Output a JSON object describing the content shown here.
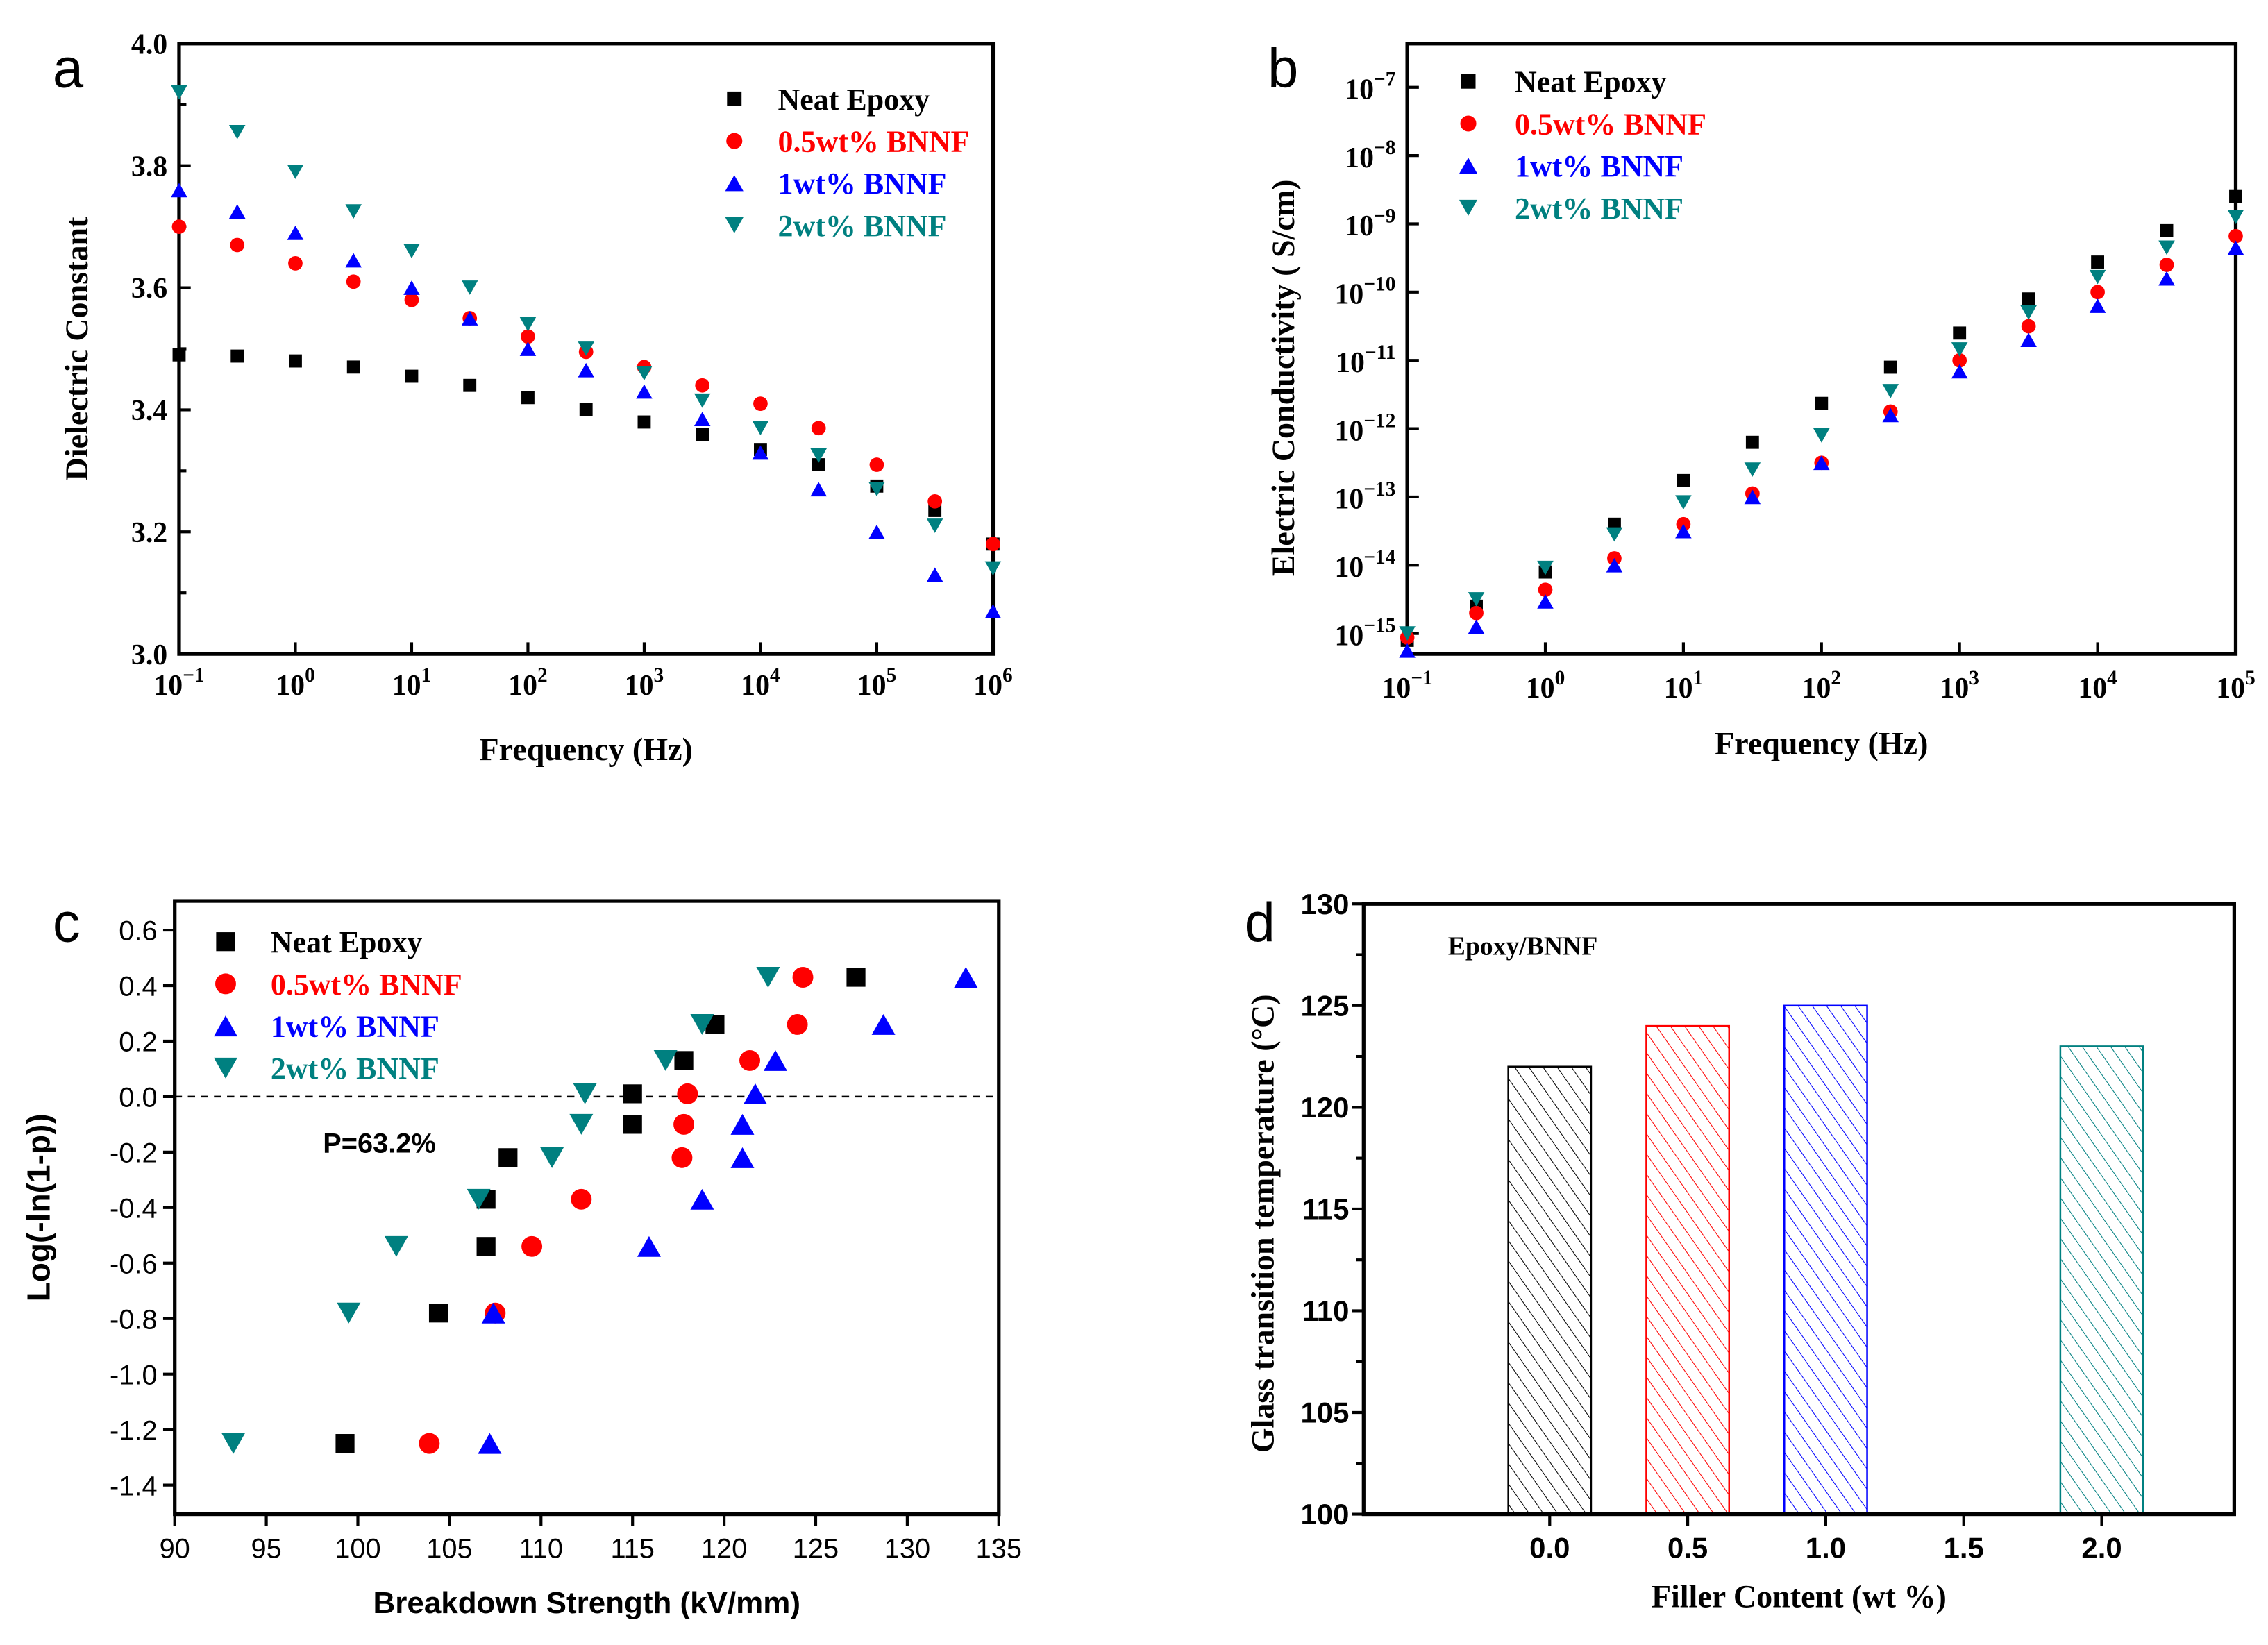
{
  "colors": {
    "neat": "#000000",
    "w05": "#ff0000",
    "w1": "#0000ff",
    "w2": "#008080"
  },
  "chart_data": [
    {
      "panel": "a",
      "type": "scatter",
      "xscale": "log",
      "xlabel": "Frequency (Hz)",
      "ylabel": "Dielectric Constant",
      "xlim_exp": [
        -1,
        6
      ],
      "ylim": [
        3.0,
        4.0
      ],
      "xtick_exponents": [
        -1,
        0,
        1,
        2,
        3,
        4,
        5,
        6
      ],
      "yticks": [
        "3.0",
        "3.2",
        "3.4",
        "3.6",
        "3.8",
        "4.0"
      ],
      "x_exp": [
        -1,
        -0.5,
        0,
        0.5,
        1,
        1.5,
        2,
        2.5,
        3,
        3.5,
        4,
        4.5,
        5,
        5.5,
        6
      ],
      "series": [
        {
          "name": "Neat Epoxy",
          "marker": "square",
          "color_key": "neat",
          "values": [
            3.49,
            3.488,
            3.48,
            3.47,
            3.455,
            3.44,
            3.42,
            3.4,
            3.38,
            3.36,
            3.335,
            3.31,
            3.275,
            3.235,
            3.18
          ]
        },
        {
          "name": "0.5wt% BNNF",
          "marker": "circle",
          "color_key": "w05",
          "values": [
            3.7,
            3.67,
            3.64,
            3.61,
            3.58,
            3.55,
            3.52,
            3.495,
            3.47,
            3.44,
            3.41,
            3.37,
            3.31,
            3.25,
            3.18
          ]
        },
        {
          "name": "1wt% BNNF",
          "marker": "triangle-up",
          "color_key": "w1",
          "values": [
            3.76,
            3.725,
            3.69,
            3.645,
            3.6,
            3.55,
            3.5,
            3.465,
            3.43,
            3.385,
            3.33,
            3.27,
            3.2,
            3.13,
            3.07
          ]
        },
        {
          "name": "2wt% BNNF",
          "marker": "triangle-down",
          "color_key": "w2",
          "values": [
            3.92,
            3.855,
            3.79,
            3.725,
            3.66,
            3.6,
            3.54,
            3.5,
            3.46,
            3.415,
            3.37,
            3.325,
            3.27,
            3.21,
            3.14
          ]
        }
      ],
      "legend": "top-right"
    },
    {
      "panel": "b",
      "type": "scatter",
      "xscale": "log",
      "yscale": "log",
      "xlabel": "Frequency (Hz)",
      "ylabel": "Electric Conductivity (  S/cm)",
      "xlim_exp": [
        -1,
        5
      ],
      "ylim_exp": [
        -15.3,
        -6.36
      ],
      "xtick_exponents": [
        -1,
        0,
        1,
        2,
        3,
        4,
        5
      ],
      "ytick_exponents": [
        -15,
        -14,
        -13,
        -12,
        -11,
        -10,
        -9,
        -8,
        -7
      ],
      "x_exp": [
        -1,
        -0.5,
        0,
        0.5,
        1,
        1.5,
        2,
        2.5,
        3,
        3.5,
        4,
        4.5,
        5
      ],
      "series_note": "values are log10 of conductivity (S/cm)",
      "series": [
        {
          "name": "Neat Epoxy",
          "marker": "square",
          "color_key": "neat",
          "values": [
            -15.1,
            -14.6,
            -14.1,
            -13.4,
            -12.76,
            -12.2,
            -11.63,
            -11.1,
            -10.6,
            -10.1,
            -9.56,
            -9.1,
            -8.6
          ]
        },
        {
          "name": "0.5wt% BNNF",
          "marker": "circle",
          "color_key": "w05",
          "values": [
            -15.06,
            -14.7,
            -14.36,
            -13.9,
            -13.4,
            -12.95,
            -12.5,
            -11.75,
            -11.0,
            -10.5,
            -10.0,
            -9.6,
            -9.18
          ]
        },
        {
          "name": "1wt% BNNF",
          "marker": "triangle-up",
          "color_key": "w1",
          "values": [
            -15.25,
            -14.9,
            -14.53,
            -14.0,
            -13.5,
            -13.0,
            -12.5,
            -11.8,
            -11.16,
            -10.7,
            -10.2,
            -9.8,
            -9.35
          ]
        },
        {
          "name": "2wt% BNNF",
          "marker": "triangle-down",
          "color_key": "w2",
          "values": [
            -15.0,
            -14.5,
            -14.04,
            -13.55,
            -13.08,
            -12.6,
            -12.1,
            -11.45,
            -10.84,
            -10.3,
            -9.78,
            -9.35,
            -8.9
          ]
        }
      ],
      "legend": "top-left"
    },
    {
      "panel": "c",
      "type": "scatter",
      "xlabel": "Breakdown Strength (kV/mm)",
      "ylabel": "Log(-ln(1-p))",
      "xlim": [
        90,
        135
      ],
      "ylim": [
        -1.505,
        0.705
      ],
      "xticks": [
        "90",
        "95",
        "100",
        "105",
        "110",
        "115",
        "120",
        "125",
        "130",
        "135"
      ],
      "yticks": [
        "-1.4",
        "-1.2",
        "-1.0",
        "-0.8",
        "-0.6",
        "-0.4",
        "-0.2",
        "0.0",
        "0.2",
        "0.4",
        "0.6"
      ],
      "annotation": "P=63.2%",
      "reference_line_y": 0,
      "series": [
        {
          "name": "Neat Epoxy",
          "marker": "square",
          "color_key": "neat",
          "points": [
            [
              99.3,
              -1.25
            ],
            [
              104.4,
              -0.78
            ],
            [
              107,
              -0.54
            ],
            [
              107,
              -0.37
            ],
            [
              108.2,
              -0.22
            ],
            [
              115,
              -0.1
            ],
            [
              115,
              0.01
            ],
            [
              117.8,
              0.13
            ],
            [
              119.5,
              0.26
            ],
            [
              127.2,
              0.43
            ]
          ]
        },
        {
          "name": "0.5wt% BNNF",
          "marker": "circle",
          "color_key": "w05",
          "points": [
            [
              103.9,
              -1.25
            ],
            [
              107.5,
              -0.78
            ],
            [
              109.5,
              -0.54
            ],
            [
              112.2,
              -0.37
            ],
            [
              117.7,
              -0.22
            ],
            [
              117.8,
              -0.1
            ],
            [
              118,
              0.01
            ],
            [
              121.4,
              0.13
            ],
            [
              124,
              0.26
            ],
            [
              124.3,
              0.43
            ]
          ]
        },
        {
          "name": "1wt% BNNF",
          "marker": "triangle-up",
          "color_key": "w1",
          "points": [
            [
              107.2,
              -1.25
            ],
            [
              107.4,
              -0.78
            ],
            [
              115.9,
              -0.54
            ],
            [
              118.8,
              -0.37
            ],
            [
              121,
              -0.22
            ],
            [
              121,
              -0.1
            ],
            [
              121.7,
              0.01
            ],
            [
              122.8,
              0.13
            ],
            [
              128.7,
              0.26
            ],
            [
              133.2,
              0.43
            ]
          ]
        },
        {
          "name": "2wt% BNNF",
          "marker": "triangle-down",
          "color_key": "w2",
          "points": [
            [
              93.2,
              -1.25
            ],
            [
              99.5,
              -0.78
            ],
            [
              102.1,
              -0.54
            ],
            [
              106.6,
              -0.37
            ],
            [
              110.6,
              -0.22
            ],
            [
              112.2,
              -0.1
            ],
            [
              112.4,
              0.01
            ],
            [
              116.8,
              0.13
            ],
            [
              118.8,
              0.26
            ],
            [
              122.4,
              0.43
            ]
          ]
        }
      ],
      "legend": "top-left"
    },
    {
      "panel": "d",
      "type": "bar",
      "title": "Epoxy/BNNF",
      "xlabel": "Filler Content (wt %)",
      "ylabel": "Glass transition temperature (°C)",
      "ylim": [
        100,
        130
      ],
      "xlim": [
        -0.674,
        2.48
      ],
      "xticks": [
        "0.0",
        "0.5",
        "1.0",
        "1.5",
        "2.0"
      ],
      "yticks": [
        "100",
        "105",
        "110",
        "115",
        "120",
        "125",
        "130"
      ],
      "bar_width": 0.3,
      "bars": [
        {
          "x": 0.0,
          "value": 122,
          "color_key": "neat"
        },
        {
          "x": 0.5,
          "value": 124,
          "color_key": "w05"
        },
        {
          "x": 1.0,
          "value": 125,
          "color_key": "w1"
        },
        {
          "x": 2.0,
          "value": 123,
          "color_key": "w2"
        }
      ]
    }
  ],
  "panel_labels": [
    "a",
    "b",
    "c",
    "d"
  ]
}
